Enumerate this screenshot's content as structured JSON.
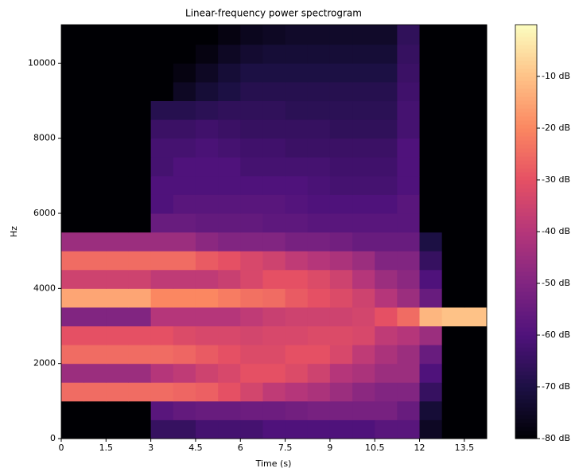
{
  "chart_data": {
    "type": "heatmap",
    "title": "Linear-frequency power spectrogram",
    "xlabel": "Time (s)",
    "ylabel": "Hz",
    "xbins": [
      0,
      0.75,
      1.5,
      2.25,
      3,
      3.75,
      4.5,
      5.25,
      6,
      6.75,
      7.5,
      8.25,
      9,
      9.75,
      10.5,
      11.25,
      12,
      12.75,
      13.5,
      14.25
    ],
    "ybins": [
      0,
      500,
      1000,
      1500,
      2000,
      2500,
      3000,
      3500,
      4000,
      4500,
      5000,
      5500,
      6000,
      6500,
      7000,
      7500,
      8000,
      8500,
      9000,
      9500,
      10000,
      10500,
      11025
    ],
    "xlim": [
      0,
      14.25
    ],
    "ylim": [
      0,
      11025
    ],
    "xticks": [
      0,
      1.5,
      3,
      4.5,
      6,
      7.5,
      9,
      10.5,
      12,
      13.5
    ],
    "yticks": [
      0,
      2000,
      4000,
      6000,
      8000,
      10000
    ],
    "colormap": "magma",
    "zlim": [
      -80,
      0
    ],
    "zticks": [
      {
        "value": -80,
        "label": "-80 dB"
      },
      {
        "value": -70,
        "label": "-70 dB"
      },
      {
        "value": -60,
        "label": "-60 dB"
      },
      {
        "value": -50,
        "label": "-50 dB"
      },
      {
        "value": -40,
        "label": "-40 dB"
      },
      {
        "value": -30,
        "label": "-30 dB"
      },
      {
        "value": -20,
        "label": "-20 dB"
      },
      {
        "value": -10,
        "label": "-10 dB"
      }
    ],
    "values": [
      [
        -80,
        -80,
        -80,
        -80,
        -65,
        -65,
        -62,
        -62,
        -62,
        -60,
        -60,
        -60,
        -60,
        -60,
        -58,
        -58,
        -75,
        -80,
        -80
      ],
      [
        -80,
        -80,
        -80,
        -80,
        -58,
        -56,
        -55,
        -55,
        -54,
        -54,
        -53,
        -52,
        -52,
        -52,
        -52,
        -55,
        -72,
        -80,
        -80
      ],
      [
        -25,
        -25,
        -25,
        -25,
        -25,
        -26,
        -27,
        -30,
        -34,
        -38,
        -40,
        -42,
        -45,
        -48,
        -50,
        -50,
        -65,
        -80,
        -80
      ],
      [
        -45,
        -45,
        -45,
        -45,
        -40,
        -38,
        -35,
        -33,
        -30,
        -30,
        -32,
        -35,
        -40,
        -42,
        -45,
        -45,
        -60,
        -80,
        -80
      ],
      [
        -25,
        -25,
        -25,
        -25,
        -25,
        -26,
        -28,
        -30,
        -32,
        -32,
        -30,
        -30,
        -33,
        -38,
        -42,
        -45,
        -55,
        -80,
        -80
      ],
      [
        -30,
        -30,
        -30,
        -30,
        -30,
        -32,
        -33,
        -33,
        -34,
        -33,
        -33,
        -32,
        -32,
        -33,
        -38,
        -40,
        -45,
        -80,
        -80
      ],
      [
        -50,
        -50,
        -50,
        -50,
        -40,
        -40,
        -40,
        -40,
        -38,
        -36,
        -35,
        -35,
        -35,
        -34,
        -30,
        -25,
        -12,
        -10,
        -10
      ],
      [
        -15,
        -15,
        -15,
        -15,
        -20,
        -20,
        -20,
        -22,
        -24,
        -25,
        -28,
        -30,
        -32,
        -35,
        -40,
        -45,
        -55,
        -80,
        -80
      ],
      [
        -35,
        -35,
        -35,
        -35,
        -38,
        -38,
        -38,
        -36,
        -33,
        -30,
        -30,
        -32,
        -35,
        -40,
        -45,
        -48,
        -60,
        -80,
        -80
      ],
      [
        -25,
        -25,
        -25,
        -25,
        -25,
        -25,
        -28,
        -30,
        -33,
        -35,
        -38,
        -40,
        -42,
        -45,
        -50,
        -50,
        -65,
        -80,
        -80
      ],
      [
        -45,
        -45,
        -45,
        -45,
        -45,
        -45,
        -48,
        -50,
        -50,
        -50,
        -52,
        -52,
        -53,
        -55,
        -55,
        -55,
        -70,
        -80,
        -80
      ],
      [
        -80,
        -80,
        -80,
        -80,
        -55,
        -55,
        -56,
        -56,
        -56,
        -57,
        -57,
        -58,
        -58,
        -58,
        -58,
        -58,
        -80,
        -80,
        -80
      ],
      [
        -80,
        -80,
        -80,
        -80,
        -60,
        -58,
        -58,
        -58,
        -58,
        -58,
        -59,
        -60,
        -60,
        -60,
        -60,
        -58,
        -80,
        -80,
        -80
      ],
      [
        -80,
        -80,
        -80,
        -80,
        -60,
        -60,
        -60,
        -60,
        -60,
        -60,
        -60,
        -61,
        -62,
        -62,
        -62,
        -60,
        -80,
        -80,
        -80
      ],
      [
        -80,
        -80,
        -80,
        -80,
        -62,
        -60,
        -60,
        -60,
        -62,
        -62,
        -62,
        -62,
        -63,
        -63,
        -63,
        -60,
        -80,
        -80,
        -80
      ],
      [
        -80,
        -80,
        -80,
        -80,
        -62,
        -62,
        -61,
        -62,
        -63,
        -63,
        -64,
        -64,
        -64,
        -64,
        -64,
        -60,
        -80,
        -80,
        -80
      ],
      [
        -80,
        -80,
        -80,
        -80,
        -64,
        -64,
        -63,
        -64,
        -65,
        -65,
        -65,
        -65,
        -66,
        -66,
        -66,
        -62,
        -80,
        -80,
        -80
      ],
      [
        -80,
        -80,
        -80,
        -80,
        -68,
        -68,
        -67,
        -66,
        -66,
        -66,
        -67,
        -67,
        -67,
        -67,
        -67,
        -62,
        -80,
        -80,
        -80
      ],
      [
        -80,
        -80,
        -80,
        -80,
        -80,
        -75,
        -72,
        -70,
        -68,
        -68,
        -68,
        -68,
        -68,
        -68,
        -68,
        -63,
        -80,
        -80,
        -80
      ],
      [
        -80,
        -80,
        -80,
        -80,
        -80,
        -78,
        -75,
        -72,
        -70,
        -70,
        -70,
        -70,
        -70,
        -70,
        -70,
        -64,
        -80,
        -80,
        -80
      ],
      [
        -80,
        -80,
        -80,
        -80,
        -80,
        -80,
        -78,
        -75,
        -73,
        -72,
        -72,
        -72,
        -72,
        -72,
        -72,
        -65,
        -80,
        -80,
        -80
      ],
      [
        -80,
        -80,
        -80,
        -80,
        -80,
        -80,
        -80,
        -78,
        -76,
        -75,
        -74,
        -74,
        -74,
        -74,
        -74,
        -66,
        -80,
        -80,
        -80
      ]
    ]
  }
}
